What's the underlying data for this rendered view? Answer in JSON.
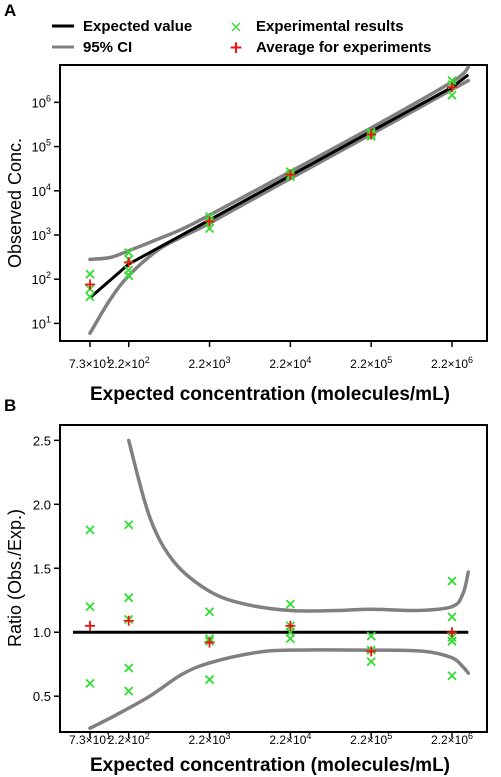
{
  "colors": {
    "expected_line": "#000000",
    "ci_line": "#808080",
    "experimental_marker": "#33dd33",
    "average_marker": "#ee1111"
  },
  "legend": {
    "expected": "Expected value",
    "ci": "95% CI",
    "experimental": "Experimental results",
    "average": "Average for experiments"
  },
  "chart_data": [
    {
      "panel": "A",
      "type": "scatter",
      "xlabel": "Expected concentration (molecules/mL)",
      "ylabel": "Observed Conc.",
      "xscale": "log",
      "yscale": "log",
      "x_tick_labels": [
        {
          "base": "7.3",
          "exp": "1",
          "value": 73
        },
        {
          "base": "2.2",
          "exp": "2",
          "value": 220
        },
        {
          "base": "2.2",
          "exp": "3",
          "value": 2200
        },
        {
          "base": "2.2",
          "exp": "4",
          "value": 22000
        },
        {
          "base": "2.2",
          "exp": "5",
          "value": 220000
        },
        {
          "base": "2.2",
          "exp": "6",
          "value": 2200000
        }
      ],
      "y_tick_labels": [
        {
          "base": "10",
          "exp": "1",
          "value": 10
        },
        {
          "base": "10",
          "exp": "2",
          "value": 100
        },
        {
          "base": "10",
          "exp": "3",
          "value": 1000
        },
        {
          "base": "10",
          "exp": "4",
          "value": 10000
        },
        {
          "base": "10",
          "exp": "5",
          "value": 100000
        },
        {
          "base": "10",
          "exp": "6",
          "value": 1000000
        }
      ],
      "xlim": [
        45,
        4000000
      ],
      "ylim": [
        4,
        7000000
      ],
      "legend_position": "top",
      "series": [
        {
          "name": "Expected value",
          "kind": "line",
          "points": [
            [
              73,
              38
            ],
            [
              220,
              220
            ],
            [
              2200,
              2200
            ],
            [
              22000,
              22000
            ],
            [
              220000,
              220000
            ],
            [
              2200000,
              2200000
            ],
            [
              3500000,
              4200000
            ]
          ]
        },
        {
          "name": "95% CI",
          "kind": "band_upper",
          "points": [
            [
              73,
              280
            ],
            [
              130,
              310
            ],
            [
              220,
              440
            ],
            [
              500,
              800
            ],
            [
              1000,
              1350
            ],
            [
              2200,
              2800
            ],
            [
              22000,
              27000
            ],
            [
              220000,
              265000
            ],
            [
              2200000,
              2900000
            ],
            [
              3500000,
              6200000
            ]
          ]
        },
        {
          "name": "95% CI",
          "kind": "band_lower",
          "points": [
            [
              73,
              6
            ],
            [
              130,
              35
            ],
            [
              220,
              120
            ],
            [
              500,
              450
            ],
            [
              1000,
              900
            ],
            [
              2200,
              1850
            ],
            [
              22000,
              19000
            ],
            [
              220000,
              190000
            ],
            [
              2200000,
              1950000
            ],
            [
              3500000,
              3100000
            ]
          ]
        },
        {
          "name": "Experimental results",
          "kind": "points",
          "points": [
            [
              73,
              130
            ],
            [
              73,
              40
            ],
            [
              73,
              60
            ],
            [
              220,
              400
            ],
            [
              220,
              280
            ],
            [
              220,
              160
            ],
            [
              220,
              120
            ],
            [
              2200,
              2600
            ],
            [
              2200,
              2050
            ],
            [
              2200,
              1400
            ],
            [
              22000,
              27000
            ],
            [
              22000,
              23000
            ],
            [
              22000,
              21000
            ],
            [
              220000,
              210000
            ],
            [
              220000,
              190000
            ],
            [
              220000,
              170000
            ],
            [
              2200000,
              3100000
            ],
            [
              2200000,
              2500000
            ],
            [
              2200000,
              1450000
            ]
          ]
        },
        {
          "name": "Average for experiments",
          "kind": "points",
          "points": [
            [
              73,
              76
            ],
            [
              220,
              240
            ],
            [
              2200,
              2020
            ],
            [
              22000,
              23300
            ],
            [
              220000,
              188000
            ],
            [
              2200000,
              2200000
            ]
          ]
        }
      ]
    },
    {
      "panel": "B",
      "type": "scatter",
      "xlabel": "Expected concentration (molecules/mL)",
      "ylabel": "Ratio (Obs./Exp.)",
      "xscale": "log",
      "yscale": "linear",
      "x_tick_labels": [
        {
          "base": "7.3",
          "exp": "1",
          "value": 73
        },
        {
          "base": "2.2",
          "exp": "2",
          "value": 220
        },
        {
          "base": "2.2",
          "exp": "3",
          "value": 2200
        },
        {
          "base": "2.2",
          "exp": "4",
          "value": 22000
        },
        {
          "base": "2.2",
          "exp": "5",
          "value": 220000
        },
        {
          "base": "2.2",
          "exp": "6",
          "value": 2200000
        }
      ],
      "y_tick_labels": [
        {
          "text": "0.5",
          "value": 0.5
        },
        {
          "text": "1.0",
          "value": 1.0
        },
        {
          "text": "1.5",
          "value": 1.5
        },
        {
          "text": "2.0",
          "value": 2.0
        },
        {
          "text": "2.5",
          "value": 2.5
        }
      ],
      "xlim": [
        45,
        4000000
      ],
      "ylim": [
        0.22,
        2.62
      ],
      "series": [
        {
          "name": "Expected value",
          "kind": "line",
          "points": [
            [
              45,
              1.0
            ],
            [
              3500000,
              1.0
            ]
          ]
        },
        {
          "name": "95% CI",
          "kind": "band_upper",
          "points": [
            [
              220,
              2.5
            ],
            [
              400,
              1.9
            ],
            [
              800,
              1.55
            ],
            [
              2200,
              1.32
            ],
            [
              6000,
              1.22
            ],
            [
              22000,
              1.17
            ],
            [
              80000,
              1.17
            ],
            [
              220000,
              1.18
            ],
            [
              800000,
              1.17
            ],
            [
              2200000,
              1.2
            ],
            [
              3000000,
              1.3
            ],
            [
              3500000,
              1.47
            ]
          ]
        },
        {
          "name": "95% CI",
          "kind": "band_lower",
          "points": [
            [
              73,
              0.25
            ],
            [
              150,
              0.35
            ],
            [
              400,
              0.5
            ],
            [
              1000,
              0.67
            ],
            [
              2200,
              0.76
            ],
            [
              8000,
              0.84
            ],
            [
              22000,
              0.86
            ],
            [
              220000,
              0.86
            ],
            [
              1000000,
              0.85
            ],
            [
              2200000,
              0.8
            ],
            [
              3000000,
              0.73
            ],
            [
              3500000,
              0.68
            ]
          ]
        },
        {
          "name": "Experimental results",
          "kind": "points",
          "points": [
            [
              73,
              1.8
            ],
            [
              73,
              1.2
            ],
            [
              73,
              0.6
            ],
            [
              220,
              1.84
            ],
            [
              220,
              1.27
            ],
            [
              220,
              1.1
            ],
            [
              220,
              0.72
            ],
            [
              220,
              0.54
            ],
            [
              2200,
              1.16
            ],
            [
              2200,
              0.95
            ],
            [
              2200,
              0.93
            ],
            [
              2200,
              0.63
            ],
            [
              22000,
              1.22
            ],
            [
              22000,
              1.05
            ],
            [
              22000,
              1.0
            ],
            [
              22000,
              0.95
            ],
            [
              220000,
              0.97
            ],
            [
              220000,
              0.86
            ],
            [
              220000,
              0.77
            ],
            [
              2200000,
              1.4
            ],
            [
              2200000,
              1.12
            ],
            [
              2200000,
              0.96
            ],
            [
              2200000,
              0.93
            ],
            [
              2200000,
              0.66
            ]
          ]
        },
        {
          "name": "Average for experiments",
          "kind": "points",
          "points": [
            [
              73,
              1.05
            ],
            [
              220,
              1.09
            ],
            [
              2200,
              0.92
            ],
            [
              22000,
              1.05
            ],
            [
              220000,
              0.85
            ],
            [
              2200000,
              1.0
            ]
          ]
        }
      ]
    }
  ]
}
